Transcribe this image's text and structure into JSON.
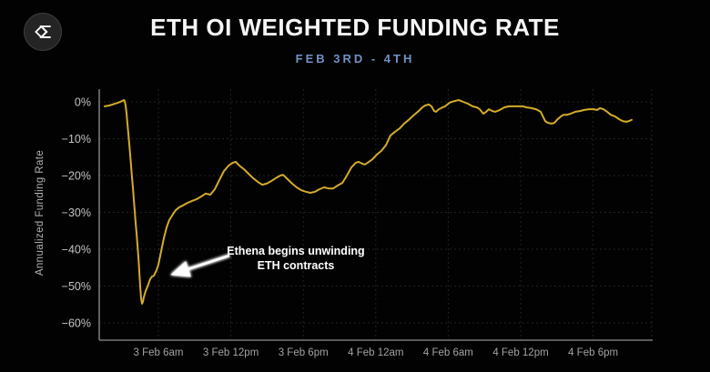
{
  "header": {
    "title": "ETH OI WEIGHTED FUNDING RATE",
    "subtitle": "FEB 3RD - 4TH"
  },
  "logo": {
    "name": "velo-sigma-logo"
  },
  "colors": {
    "background": "#020202",
    "line": "#d4ab2a",
    "subtitle_accent": "#7291c5",
    "title_text": "#f5f5f5",
    "y_tick_text": "#c3c3c3",
    "x_tick_text": "#a3a3a3"
  },
  "chart_data": {
    "type": "line",
    "title": "ETH OI WEIGHTED FUNDING RATE",
    "subtitle": "FEB 3RD - 4TH",
    "xlabel": "",
    "ylabel": "Annualized Funding Rate",
    "ylim": [
      -65,
      3
    ],
    "grid": "dashed, both axes",
    "legend": "none",
    "x_unit": "hours since 3 Feb 12am",
    "y_ticks": [
      {
        "v": 0,
        "label": "0%"
      },
      {
        "v": -10,
        "label": "−10%"
      },
      {
        "v": -20,
        "label": "−20%"
      },
      {
        "v": -30,
        "label": "−30%"
      },
      {
        "v": -40,
        "label": "−40%"
      },
      {
        "v": -50,
        "label": "−50%"
      },
      {
        "v": -60,
        "label": "−60%"
      }
    ],
    "x_ticks": [
      {
        "t": 6,
        "label": "3 Feb 6am"
      },
      {
        "t": 12,
        "label": "3 Feb 12pm"
      },
      {
        "t": 18,
        "label": "3 Feb 6pm"
      },
      {
        "t": 24,
        "label": "4 Feb 12am"
      },
      {
        "t": 30,
        "label": "4 Feb 6am"
      },
      {
        "t": 36,
        "label": "4 Feb 12pm"
      },
      {
        "t": 42,
        "label": "4 Feb 6pm"
      }
    ],
    "series": [
      {
        "name": "ETH OI weighted funding rate (annualized %)",
        "color": "#d4ab2a",
        "points": [
          [
            1.55,
            -1.2
          ],
          [
            1.93,
            -1.0
          ],
          [
            2.31,
            -0.6
          ],
          [
            2.68,
            -0.2
          ],
          [
            2.91,
            0.1
          ],
          [
            3.14,
            0.5
          ],
          [
            3.21,
            0.2
          ],
          [
            3.29,
            -1.0
          ],
          [
            3.36,
            -3.0
          ],
          [
            3.44,
            -5.9
          ],
          [
            3.51,
            -8.6
          ],
          [
            3.59,
            -11.4
          ],
          [
            3.66,
            -14.3
          ],
          [
            3.74,
            -17.3
          ],
          [
            3.81,
            -20.2
          ],
          [
            3.89,
            -23.2
          ],
          [
            3.96,
            -26.2
          ],
          [
            4.04,
            -29.6
          ],
          [
            4.11,
            -32.6
          ],
          [
            4.19,
            -35.6
          ],
          [
            4.27,
            -38.8
          ],
          [
            4.34,
            -42.0
          ],
          [
            4.42,
            -45.9
          ],
          [
            4.49,
            -50.1
          ],
          [
            4.57,
            -53.3
          ],
          [
            4.64,
            -54.8
          ],
          [
            4.72,
            -54.3
          ],
          [
            4.79,
            -53.1
          ],
          [
            4.94,
            -51.4
          ],
          [
            5.1,
            -50.1
          ],
          [
            5.32,
            -48.1
          ],
          [
            5.47,
            -47.4
          ],
          [
            5.62,
            -47.2
          ],
          [
            5.85,
            -45.7
          ],
          [
            6.0,
            -44.2
          ],
          [
            6.23,
            -40.5
          ],
          [
            6.45,
            -37.0
          ],
          [
            6.68,
            -34.1
          ],
          [
            6.9,
            -32.1
          ],
          [
            7.13,
            -30.9
          ],
          [
            7.43,
            -29.4
          ],
          [
            7.73,
            -28.6
          ],
          [
            8.04,
            -28.1
          ],
          [
            8.41,
            -27.4
          ],
          [
            8.79,
            -26.9
          ],
          [
            9.17,
            -26.4
          ],
          [
            9.54,
            -25.7
          ],
          [
            9.92,
            -24.9
          ],
          [
            10.3,
            -25.2
          ],
          [
            10.67,
            -23.7
          ],
          [
            11.05,
            -21.2
          ],
          [
            11.43,
            -18.8
          ],
          [
            11.81,
            -17.3
          ],
          [
            12.18,
            -16.5
          ],
          [
            12.41,
            -16.3
          ],
          [
            12.71,
            -17.3
          ],
          [
            13.09,
            -18.3
          ],
          [
            13.46,
            -19.5
          ],
          [
            13.84,
            -20.7
          ],
          [
            14.22,
            -21.7
          ],
          [
            14.59,
            -22.5
          ],
          [
            14.97,
            -22.2
          ],
          [
            15.35,
            -21.5
          ],
          [
            15.72,
            -20.7
          ],
          [
            16.1,
            -20.0
          ],
          [
            16.33,
            -19.8
          ],
          [
            16.71,
            -21.0
          ],
          [
            17.08,
            -22.2
          ],
          [
            17.46,
            -23.2
          ],
          [
            17.84,
            -24.0
          ],
          [
            18.21,
            -24.4
          ],
          [
            18.59,
            -24.7
          ],
          [
            18.97,
            -24.4
          ],
          [
            19.34,
            -23.7
          ],
          [
            19.72,
            -23.2
          ],
          [
            20.1,
            -23.5
          ],
          [
            20.47,
            -23.5
          ],
          [
            20.85,
            -22.7
          ],
          [
            21.23,
            -22.0
          ],
          [
            21.61,
            -20.0
          ],
          [
            21.98,
            -17.8
          ],
          [
            22.36,
            -16.5
          ],
          [
            22.58,
            -16.3
          ],
          [
            22.89,
            -16.8
          ],
          [
            23.11,
            -17.0
          ],
          [
            23.34,
            -16.5
          ],
          [
            23.72,
            -15.6
          ],
          [
            24.09,
            -14.3
          ],
          [
            24.47,
            -13.3
          ],
          [
            24.85,
            -11.7
          ],
          [
            25.22,
            -9.1
          ],
          [
            25.6,
            -8.1
          ],
          [
            25.98,
            -7.2
          ],
          [
            26.35,
            -5.9
          ],
          [
            26.73,
            -4.9
          ],
          [
            27.11,
            -3.7
          ],
          [
            27.48,
            -2.7
          ],
          [
            27.86,
            -1.5
          ],
          [
            28.09,
            -1.0
          ],
          [
            28.39,
            -0.7
          ],
          [
            28.61,
            -1.2
          ],
          [
            28.84,
            -2.5
          ],
          [
            28.99,
            -2.7
          ],
          [
            29.22,
            -2.0
          ],
          [
            29.52,
            -1.5
          ],
          [
            29.75,
            -1.2
          ],
          [
            30.12,
            -0.2
          ],
          [
            30.5,
            0.2
          ],
          [
            30.88,
            0.5
          ],
          [
            31.25,
            0.0
          ],
          [
            31.63,
            -0.5
          ],
          [
            32.01,
            -1.2
          ],
          [
            32.38,
            -1.5
          ],
          [
            32.61,
            -2.0
          ],
          [
            32.91,
            -3.2
          ],
          [
            33.14,
            -2.7
          ],
          [
            33.36,
            -2.0
          ],
          [
            33.66,
            -2.5
          ],
          [
            33.89,
            -2.7
          ],
          [
            34.27,
            -2.2
          ],
          [
            34.64,
            -1.5
          ],
          [
            35.02,
            -1.2
          ],
          [
            35.4,
            -1.2
          ],
          [
            35.77,
            -1.2
          ],
          [
            36.15,
            -1.2
          ],
          [
            36.53,
            -1.5
          ],
          [
            36.9,
            -1.7
          ],
          [
            37.28,
            -2.0
          ],
          [
            37.66,
            -2.7
          ],
          [
            38.03,
            -5.2
          ],
          [
            38.26,
            -5.7
          ],
          [
            38.56,
            -5.9
          ],
          [
            38.79,
            -5.7
          ],
          [
            39.01,
            -4.9
          ],
          [
            39.31,
            -4.0
          ],
          [
            39.54,
            -3.5
          ],
          [
            39.84,
            -3.5
          ],
          [
            40.14,
            -3.2
          ],
          [
            40.52,
            -2.7
          ],
          [
            40.9,
            -2.5
          ],
          [
            41.27,
            -2.2
          ],
          [
            41.65,
            -2.0
          ],
          [
            42.03,
            -2.0
          ],
          [
            42.33,
            -2.2
          ],
          [
            42.56,
            -1.7
          ],
          [
            42.86,
            -2.0
          ],
          [
            43.16,
            -2.7
          ],
          [
            43.46,
            -3.5
          ],
          [
            43.84,
            -4.0
          ],
          [
            44.14,
            -4.7
          ],
          [
            44.44,
            -5.2
          ],
          [
            44.74,
            -5.4
          ],
          [
            44.97,
            -5.2
          ],
          [
            45.19,
            -4.9
          ]
        ]
      }
    ],
    "annotation": {
      "line1": "Ethena begins unwinding",
      "line2": "ETH contracts",
      "arrow": "white arrow pointing down-left toward the recovery leg near -47%"
    }
  }
}
